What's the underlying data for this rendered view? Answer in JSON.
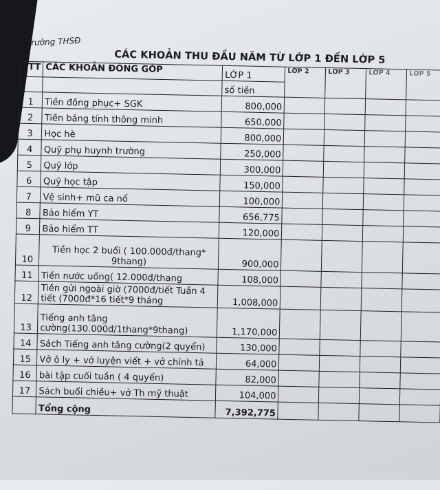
{
  "school": "Trường THSĐ",
  "title": "CÁC KHOẢN THU ĐẦU NĂM TỪ LỚP 1 ĐẾN LỚP 5",
  "headers": {
    "stt": "STT",
    "desc": "CÁC KHOẢN ĐÓNG GÓP",
    "lop1": "LỚP 1",
    "amount": "số tiền",
    "lop2": "LỚP 2",
    "lop3": "LỚP 3",
    "lop4": "LỚP 4",
    "lop5": "LỚP 5"
  },
  "rows": [
    {
      "stt": "1",
      "desc": "Tiền đồng phục+ SGK",
      "amount": "800,000"
    },
    {
      "stt": "2",
      "desc": "Tiền bảng tính thông minh",
      "amount": "650,000"
    },
    {
      "stt": "3",
      "desc": "Học hè",
      "amount": "800,000"
    },
    {
      "stt": "4",
      "desc": "Quỹ phụ huynh trường",
      "amount": "250,000"
    },
    {
      "stt": "5",
      "desc": "Quỹ lớp",
      "amount": "300,000"
    },
    {
      "stt": "6",
      "desc": "Quỹ học tập",
      "amount": "150,000"
    },
    {
      "stt": "7",
      "desc": "Vệ sinh+ mũ ca nố",
      "amount": "100,000"
    },
    {
      "stt": "8",
      "desc": "Bảo hiểm YT",
      "amount": "656,775"
    },
    {
      "stt": "9",
      "desc": "Bảo hiểm TT",
      "amount": "120,000"
    },
    {
      "stt": "10",
      "desc": "Tiền học 2 buổi ( 100.000đ/thang* 9thang)",
      "amount": "900,000"
    },
    {
      "stt": "11",
      "desc": "Tiền nước uống( 12.000đ/thang",
      "amount": "108,000"
    },
    {
      "stt": "12",
      "desc": "Tiền gửi ngoài giờ (7000đ/tiết Tuần 4 tiết (7000đ*16 tiết*9 tháng",
      "amount": "1,008,000"
    },
    {
      "stt": "13",
      "desc": "Tiếng anh tăng cường(130.000đ/1thang*9thang)",
      "amount": "1,170,000"
    },
    {
      "stt": "14",
      "desc": "Sách Tiếng anh tăng cường(2 quyển)",
      "amount": "130,000"
    },
    {
      "stt": "15",
      "desc": "Vở ô ly + vở luyện viết + vở chính tả",
      "amount": "64,000"
    },
    {
      "stt": "16",
      "desc": "bài tập cuối tuần ( 4 quyển)",
      "amount": "82,000"
    },
    {
      "stt": "17",
      "desc": "Sách buổi chiều+ vở Th mỹ thuật",
      "amount": "104,000"
    }
  ],
  "total": {
    "label": "Tổng cộng",
    "amount": "7,392,775"
  }
}
